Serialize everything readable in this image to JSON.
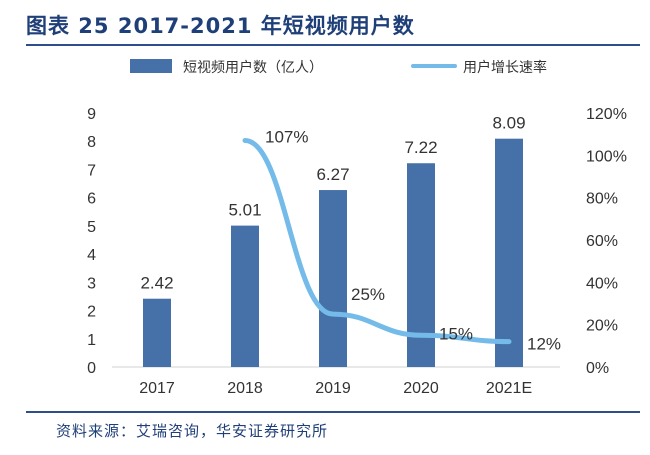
{
  "header": {
    "title": "图表 25 2017-2021 年短视频用户数"
  },
  "footer": {
    "source": "资料来源：艾瑞咨询，华安证券研究所"
  },
  "colors": {
    "bar": "#4570a8",
    "line": "#74bbe9",
    "rule": "#2e4d8a",
    "title": "#1f3f78"
  },
  "chart_data": {
    "type": "bar",
    "categories": [
      "2017",
      "2018",
      "2019",
      "2020",
      "2021E"
    ],
    "series": [
      {
        "name": "短视频用户数（亿人）",
        "type": "bar",
        "axis": "left",
        "values": [
          2.42,
          5.01,
          6.27,
          7.22,
          8.09
        ],
        "labels": [
          "2.42",
          "5.01",
          "6.27",
          "7.22",
          "8.09"
        ]
      },
      {
        "name": "用户增长速率",
        "type": "line",
        "axis": "right",
        "values": [
          null,
          107,
          25,
          15,
          12
        ],
        "labels": [
          null,
          "107%",
          "25%",
          "15%",
          "12%"
        ]
      }
    ],
    "left_axis": {
      "min": 0,
      "max": 9,
      "ticks": [
        "0",
        "1",
        "2",
        "3",
        "4",
        "5",
        "6",
        "7",
        "8",
        "9"
      ]
    },
    "right_axis": {
      "min": 0,
      "max": 120,
      "unit": "%",
      "ticks": [
        "0%",
        "20%",
        "40%",
        "60%",
        "80%",
        "100%",
        "120%"
      ]
    },
    "legend_position": "top",
    "grid": false
  }
}
